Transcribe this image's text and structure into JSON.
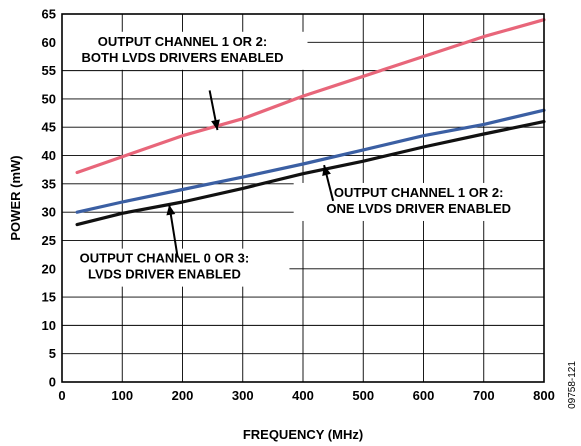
{
  "chart_data": {
    "type": "line",
    "xlabel": "FREQUENCY (MHz)",
    "ylabel": "POWER (mW)",
    "xlim": [
      0,
      800
    ],
    "ylim": [
      0,
      65
    ],
    "xticks": [
      "0",
      "100",
      "200",
      "300",
      "400",
      "500",
      "600",
      "700",
      "800"
    ],
    "yticks": [
      "0",
      "5",
      "10",
      "15",
      "20",
      "25",
      "30",
      "35",
      "40",
      "45",
      "50",
      "55",
      "60",
      "65"
    ],
    "grid": true,
    "figure_id": "09758-121",
    "series": [
      {
        "name": "OUTPUT CHANNEL 1 OR 2: BOTH LVDS DRIVERS ENABLED",
        "color": "#e8667a",
        "x": [
          25,
          100,
          200,
          250,
          300,
          400,
          500,
          600,
          700,
          800
        ],
        "y": [
          37,
          39.8,
          43.5,
          45,
          46.5,
          50.5,
          54,
          57.5,
          61,
          64
        ]
      },
      {
        "name": "OUTPUT CHANNEL 1 OR 2: ONE LVDS DRIVER ENABLED",
        "color": "#3b5fa3",
        "x": [
          25,
          100,
          200,
          300,
          400,
          500,
          600,
          700,
          800
        ],
        "y": [
          30,
          31.8,
          34,
          36.2,
          38.5,
          41,
          43.5,
          45.5,
          48
        ]
      },
      {
        "name": "OUTPUT CHANNEL 0 OR 3: LVDS DRIVER ENABLED",
        "color": "#111111",
        "x": [
          25,
          100,
          200,
          300,
          400,
          500,
          600,
          700,
          800
        ],
        "y": [
          27.8,
          29.8,
          31.8,
          34.2,
          36.8,
          39,
          41.5,
          43.8,
          46
        ]
      }
    ],
    "annotations": [
      {
        "lines": [
          "OUTPUT CHANNEL 1 OR 2:",
          "BOTH LVDS DRIVERS ENABLED"
        ],
        "text_at": [
          200,
          58.5
        ],
        "arrow_from": [
          245,
          51.5
        ],
        "arrow_to": [
          258,
          44.5
        ]
      },
      {
        "lines": [
          "OUTPUT CHANNEL 1 OR 2:",
          "ONE LVDS DRIVER ENABLED"
        ],
        "text_at": [
          592,
          31.8
        ],
        "arrow_from": [
          450,
          32
        ],
        "arrow_to": [
          435,
          38.3
        ]
      },
      {
        "lines": [
          "OUTPUT CHANNEL 0 OR 3:",
          "LVDS DRIVER ENABLED"
        ],
        "text_at": [
          170,
          20.2
        ],
        "arrow_from": [
          192,
          22
        ],
        "arrow_to": [
          178,
          31.3
        ]
      }
    ]
  }
}
